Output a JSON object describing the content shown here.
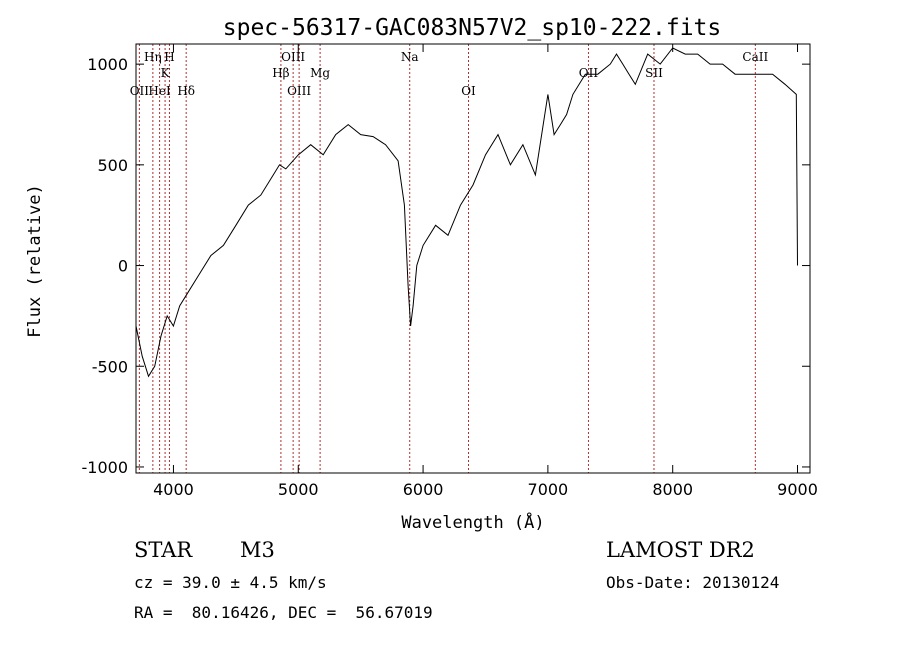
{
  "chart_data": {
    "type": "line",
    "title": "spec-56317-GAC083N57V2_sp10-222.fits",
    "xlabel": "Wavelength (Å)",
    "ylabel": "Flux (relative)",
    "xlim": [
      3700,
      9100
    ],
    "ylim": [
      -1030,
      1100
    ],
    "x_ticks": [
      4000,
      5000,
      6000,
      7000,
      8000,
      9000
    ],
    "y_ticks": [
      -1000,
      -500,
      0,
      500,
      1000
    ],
    "grid": false,
    "series": [
      {
        "x": [
          3700,
          3750,
          3800,
          3850,
          3900,
          3950,
          4000,
          4050,
          4100,
          4200,
          4300,
          4400,
          4500,
          4600,
          4700,
          4800,
          4850,
          4900,
          5000,
          5100,
          5200,
          5300,
          5400,
          5500,
          5600,
          5700,
          5800,
          5850,
          5880,
          5900,
          5920,
          5950,
          6000,
          6100,
          6200,
          6300,
          6400,
          6500,
          6600,
          6700,
          6800,
          6900,
          7000,
          7050,
          7100,
          7150,
          7200,
          7300,
          7400,
          7500,
          7550,
          7600,
          7650,
          7700,
          7800,
          7900,
          8000,
          8100,
          8200,
          8300,
          8400,
          8500,
          8600,
          8700,
          8800,
          8900,
          8990,
          9000
        ],
        "y": [
          -300,
          -450,
          -550,
          -500,
          -350,
          -250,
          -300,
          -200,
          -150,
          -50,
          50,
          100,
          200,
          300,
          350,
          450,
          500,
          480,
          550,
          600,
          550,
          650,
          700,
          650,
          640,
          600,
          520,
          300,
          -100,
          -300,
          -200,
          0,
          100,
          200,
          150,
          300,
          400,
          550,
          650,
          500,
          600,
          450,
          850,
          650,
          700,
          750,
          850,
          950,
          950,
          1000,
          1050,
          1000,
          950,
          900,
          1050,
          1000,
          1080,
          1050,
          1050,
          1000,
          1000,
          950,
          950,
          950,
          950,
          900,
          850,
          0
        ]
      }
    ],
    "lines": [
      {
        "label": "Hη",
        "wave": 3835,
        "row": 0
      },
      {
        "label": "H",
        "wave": 3968,
        "row": 0
      },
      {
        "label": "K",
        "wave": 3933,
        "row": 1
      },
      {
        "label": "OII",
        "wave": 3727,
        "row": 2
      },
      {
        "label": "HeI",
        "wave": 3889,
        "row": 2
      },
      {
        "label": "Hδ",
        "wave": 4102,
        "row": 2
      },
      {
        "label": "OIII",
        "wave": 4959,
        "row": 0
      },
      {
        "label": "Hβ",
        "wave": 4861,
        "row": 1
      },
      {
        "label": "Mg",
        "wave": 5175,
        "row": 1
      },
      {
        "label": "OIII",
        "wave": 5007,
        "row": 2
      },
      {
        "label": "Na",
        "wave": 5893,
        "row": 0
      },
      {
        "label": "OI",
        "wave": 6364,
        "row": 2
      },
      {
        "label": "OII",
        "wave": 7325,
        "row": 1
      },
      {
        "label": "SII",
        "wave": 7850,
        "row": 1
      },
      {
        "label": "CaII",
        "wave": 8662,
        "row": 0
      }
    ]
  },
  "info": {
    "object_class": "STAR",
    "subclass": "M3",
    "cz": "cz = 39.0 ± 4.5 km/s",
    "coords": "RA =  80.16426, DEC =  56.67019",
    "survey": "LAMOST DR2",
    "obs_date": "Obs-Date: 20130124"
  }
}
